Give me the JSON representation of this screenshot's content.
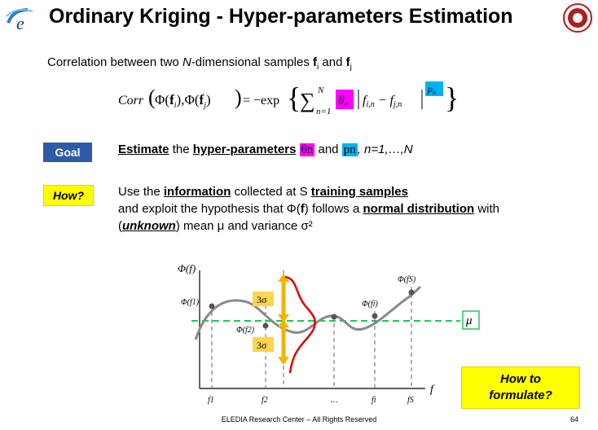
{
  "slide": {
    "title": "Ordinary Kriging - Hyper-parameters Estimation",
    "footer": "ELEDIA Research Center – All Rights Reserved",
    "page_number": "64"
  },
  "intro": {
    "prefix": "Correlation between two ",
    "n": "N",
    "suffix": "-dimensional samples ",
    "fi": "f",
    "fi_sub": "i",
    "and": " and ",
    "fj": "f",
    "fj_sub": "j"
  },
  "formula": {
    "corr": "Corr",
    "exp": "= −exp",
    "sum_top": "N",
    "sum_bottom": "n=1",
    "theta": "θn",
    "diff": "f i,n − f j,n",
    "p": "pn"
  },
  "goal": {
    "badge": "Goal",
    "w1": "Estimate",
    "w2": " the ",
    "w3": "hyper-parameters",
    "theta": "θn",
    "w4": " and ",
    "p": "pn",
    "w5": ", n=1,…,N"
  },
  "how": {
    "badge": "How?",
    "l1a": "Use the ",
    "l1b": "information",
    "l1c": " collected at S ",
    "l1d": "training samples",
    "l2a": "and exploit the hypothesis that Φ(",
    "l2b": "f",
    "l2c": ") follows a ",
    "l2d": "normal distribution",
    "l2e": " with",
    "l3a": "(",
    "l3b": "unknown",
    "l3c": ") mean μ and variance σ²"
  },
  "chart_labels": {
    "yaxis": "Φ(f)",
    "xaxis": "f",
    "phi1": "Φ(f1)",
    "phi2": "Φ(f2)",
    "phii": "Φ(fi)",
    "phis": "Φ(fS)",
    "sigma_top": "3σ",
    "sigma_bottom": "3σ",
    "mu": "μ",
    "tick1": "f1",
    "tick2": "f2",
    "tick3": "…",
    "tick4": "fi",
    "tick5": "fS"
  },
  "formulate": {
    "line1": "How to",
    "line2": "formulate?"
  },
  "colors": {
    "goal_badge": "#2f5aa8",
    "how_badge": "#ffff00",
    "theta_highlight": "#ff00ff",
    "p_highlight": "#00b0f0",
    "mu_line": "#22c55e",
    "sigma_arrows": "#f0b400",
    "gaussian": "#e00000",
    "curve": "#808080"
  }
}
